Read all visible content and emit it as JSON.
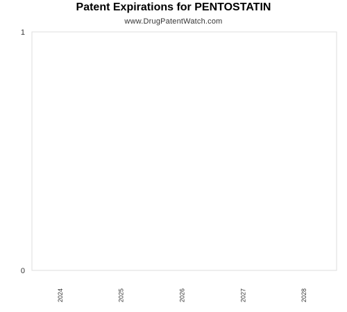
{
  "chart_data": {
    "type": "bar",
    "title": "Patent Expirations for PENTOSTATIN",
    "subtitle": "www.DrugPatentWatch.com",
    "categories": [
      "2024",
      "2025",
      "2026",
      "2027",
      "2028"
    ],
    "series": [
      {
        "values": [
          0,
          0,
          0,
          0,
          0
        ]
      }
    ],
    "ylim": [
      0,
      1
    ],
    "yticks": [
      "0",
      "1"
    ],
    "grid": false,
    "legend": "none",
    "colors": {
      "frame": "#dddddd",
      "text": "#333333"
    }
  }
}
